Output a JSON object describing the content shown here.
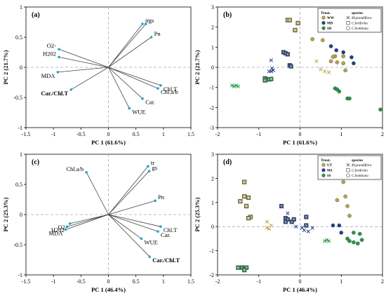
{
  "colors": {
    "ww": "#b5a648",
    "md": "#1f3f8c",
    "sd": "#1f9a44",
    "vec": "#2aa3c9"
  },
  "chart_data": [
    {
      "id": "a",
      "panel_label": "(a)",
      "type": "biplot",
      "xlabel": "PC 1 (61.6%)",
      "ylabel": "PC 2 (21.7%)",
      "xlim": [
        -1.5,
        1.5
      ],
      "ylim": [
        -1.0,
        1.0
      ],
      "xticks": [
        "-1.5",
        "-1",
        "-0.5",
        "0",
        "0.5",
        "1",
        "1.5"
      ],
      "yticks": [
        "-1",
        "-0.5",
        "0",
        "0.5",
        "1"
      ],
      "vectors": [
        {
          "label": "tr",
          "x": 0.62,
          "y": 0.72,
          "bold": false
        },
        {
          "label": "gs",
          "x": 0.68,
          "y": 0.72,
          "bold": false
        },
        {
          "label": "Pn",
          "x": 0.78,
          "y": 0.5,
          "bold": false
        },
        {
          "label": "O2-",
          "x": -0.9,
          "y": 0.3,
          "bold": false
        },
        {
          "label": "H202",
          "x": -0.9,
          "y": 0.17,
          "bold": false
        },
        {
          "label": "MDA",
          "x": -0.92,
          "y": -0.08,
          "bold": false
        },
        {
          "label": "Car./Chl.T",
          "x": -0.68,
          "y": -0.37,
          "bold": true
        },
        {
          "label": "Chl.T",
          "x": 0.95,
          "y": -0.3,
          "bold": false
        },
        {
          "label": "Chl.a/b",
          "x": 0.9,
          "y": -0.35,
          "bold": false
        },
        {
          "label": "Car.",
          "x": 0.62,
          "y": -0.52,
          "bold": false
        },
        {
          "label": "WUE",
          "x": 0.38,
          "y": -0.68,
          "bold": false
        }
      ]
    },
    {
      "id": "b",
      "panel_label": "(b)",
      "type": "scatter",
      "xlabel": "PC 1 (61.6%)",
      "ylabel": "PC 2 (21.7%)",
      "xlim": [
        -2,
        2
      ],
      "ylim": [
        -3,
        3
      ],
      "xticks": [
        "-2",
        "-1",
        "0",
        "1",
        "2"
      ],
      "yticks": [
        "-3",
        "-2",
        "-1",
        "0",
        "1",
        "2",
        "3"
      ],
      "legend": {
        "title_treat": "Treat.",
        "title_species": "species",
        "treatments": [
          {
            "label": "WW",
            "key": "ww"
          },
          {
            "label": "MD",
            "key": "md"
          },
          {
            "label": "SD",
            "key": "sd"
          }
        ],
        "species": [
          {
            "label": "M.grandiflora",
            "marker": "x"
          },
          {
            "label": "C.fortfrolia",
            "marker": "square"
          },
          {
            "label": "C.bonttiana",
            "marker": "circle"
          }
        ]
      },
      "series": [
        {
          "treat": "ww",
          "marker": "square",
          "points": [
            [
              -0.3,
              2.35
            ],
            [
              -0.25,
              2.35
            ],
            [
              -0.05,
              2.2
            ],
            [
              -0.12,
              1.85
            ]
          ]
        },
        {
          "treat": "ww",
          "marker": "circle",
          "points": [
            [
              0.3,
              1.4
            ],
            [
              0.55,
              1.35
            ],
            [
              0.85,
              0.55
            ],
            [
              0.8,
              0.52
            ],
            [
              1.05,
              0.55
            ],
            [
              0.75,
              0.3
            ],
            [
              0.9,
              0.25
            ],
            [
              1.05,
              0.2
            ],
            [
              1.1,
              -0.15
            ]
          ]
        },
        {
          "treat": "ww",
          "marker": "x",
          "points": [
            [
              0.4,
              0.3
            ],
            [
              0.5,
              -0.1
            ],
            [
              0.6,
              -0.2
            ],
            [
              0.7,
              -0.25
            ]
          ]
        },
        {
          "treat": "md",
          "marker": "x",
          "points": [
            [
              -0.7,
              0.35
            ],
            [
              -0.75,
              -0.2
            ],
            [
              -0.7,
              -0.2
            ],
            [
              -0.65,
              -0.15
            ],
            [
              -0.68,
              -0.05
            ]
          ]
        },
        {
          "treat": "md",
          "marker": "square",
          "points": [
            [
              -0.4,
              0.75
            ],
            [
              -0.35,
              0.7
            ],
            [
              -0.3,
              0.65
            ],
            [
              -0.25,
              0.1
            ],
            [
              -0.22,
              0.05
            ]
          ]
        },
        {
          "treat": "md",
          "marker": "circle",
          "points": [
            [
              0.75,
              1.05
            ],
            [
              0.88,
              0.85
            ],
            [
              1.05,
              0.75
            ],
            [
              1.25,
              0.5
            ],
            [
              1.3,
              0.2
            ]
          ]
        },
        {
          "treat": "sd",
          "marker": "x",
          "points": [
            [
              -1.65,
              -0.9
            ],
            [
              -1.6,
              -0.95
            ],
            [
              -1.55,
              -0.9
            ],
            [
              -1.5,
              -0.95
            ]
          ]
        },
        {
          "treat": "sd",
          "marker": "square",
          "points": [
            [
              -0.85,
              -0.55
            ],
            [
              -0.8,
              -0.6
            ],
            [
              -0.75,
              -0.6
            ],
            [
              -0.7,
              -0.58
            ],
            [
              -0.85,
              -0.65
            ]
          ]
        },
        {
          "treat": "sd",
          "marker": "circle",
          "points": [
            [
              0.85,
              -1.05
            ],
            [
              0.9,
              -1.1
            ],
            [
              0.95,
              -1.2
            ],
            [
              1.15,
              -1.55
            ],
            [
              1.2,
              -1.55
            ],
            [
              1.95,
              -2.1
            ]
          ]
        }
      ]
    },
    {
      "id": "c",
      "panel_label": "(c)",
      "type": "biplot",
      "xlabel": "PC 1 (46.4%)",
      "ylabel": "PC 2 (25.3%)",
      "xlim": [
        -1.5,
        1.5
      ],
      "ylim": [
        -1.0,
        1.0
      ],
      "xticks": [
        "-1.5",
        "-1",
        "-0.5",
        "0",
        "0.5",
        "1",
        "1.5"
      ],
      "yticks": [
        "-1",
        "-0.5",
        "0",
        "0.5",
        "1"
      ],
      "vectors": [
        {
          "label": "Chl.a/b",
          "x": -0.4,
          "y": 0.7,
          "bold": false
        },
        {
          "label": "tr",
          "x": 0.72,
          "y": 0.8,
          "bold": false
        },
        {
          "label": "gs",
          "x": 0.74,
          "y": 0.72,
          "bold": false
        },
        {
          "label": "Pn",
          "x": 0.85,
          "y": 0.23,
          "bold": false
        },
        {
          "label": "O2-",
          "x": -0.7,
          "y": -0.15,
          "bold": false
        },
        {
          "label": "H202",
          "x": -0.75,
          "y": -0.2,
          "bold": false
        },
        {
          "label": "MDA",
          "x": -0.78,
          "y": -0.25,
          "bold": false
        },
        {
          "label": "Chl.T",
          "x": 0.95,
          "y": -0.2,
          "bold": false
        },
        {
          "label": "Car.",
          "x": 0.9,
          "y": -0.28,
          "bold": false
        },
        {
          "label": "WUE",
          "x": 0.6,
          "y": -0.4,
          "bold": false
        },
        {
          "label": "Car./Chl.T",
          "x": 0.75,
          "y": -0.7,
          "bold": true
        }
      ]
    },
    {
      "id": "d",
      "panel_label": "(d)",
      "type": "scatter",
      "xlabel": "PC 1 (46.4%)",
      "ylabel": "PC 2 (25.3%)",
      "xlim": [
        -2,
        2
      ],
      "ylim": [
        -2,
        3
      ],
      "xticks": [
        "-2",
        "-1",
        "0",
        "1",
        "2"
      ],
      "yticks": [
        "-2",
        "-1",
        "0",
        "1",
        "2",
        "3"
      ],
      "legend": {
        "title_treat": "Treat.",
        "title_species": "species",
        "treatments": [
          {
            "label": "UT",
            "key": "ww"
          },
          {
            "label": "MS",
            "key": "md"
          },
          {
            "label": "SS",
            "key": "sd"
          }
        ],
        "species": [
          {
            "label": "M.grandiflora",
            "marker": "x"
          },
          {
            "label": "C.fortfrolia",
            "marker": "square"
          },
          {
            "label": "C.bonttiana",
            "marker": "circle"
          }
        ]
      },
      "series": [
        {
          "treat": "ww",
          "marker": "square",
          "points": [
            [
              -1.35,
              1.85
            ],
            [
              -1.35,
              1.25
            ],
            [
              -1.25,
              1.2
            ],
            [
              -1.45,
              1.05
            ],
            [
              -1.3,
              0.85
            ],
            [
              -1.2,
              0.4
            ],
            [
              -1.25,
              0.35
            ]
          ]
        },
        {
          "treat": "ww",
          "marker": "circle",
          "points": [
            [
              0.88,
              2.1
            ],
            [
              0.9,
              2.05
            ],
            [
              1.2,
              2.1
            ],
            [
              1.05,
              1.85
            ],
            [
              1.1,
              1.25
            ],
            [
              0.9,
              1.1
            ],
            [
              1.15,
              0.85
            ],
            [
              1.2,
              0.45
            ]
          ]
        },
        {
          "treat": "ww",
          "marker": "x",
          "points": [
            [
              -0.8,
              0.2
            ],
            [
              -0.7,
              0.05
            ],
            [
              -0.8,
              -0.05
            ],
            [
              -0.75,
              -0.1
            ]
          ]
        },
        {
          "treat": "md",
          "marker": "x",
          "points": [
            [
              -0.3,
              0.55
            ],
            [
              -0.1,
              0.0
            ],
            [
              0.05,
              -0.05
            ],
            [
              0.1,
              -0.15
            ],
            [
              0.2,
              -0.2
            ],
            [
              0.3,
              -0.05
            ]
          ]
        },
        {
          "treat": "md",
          "marker": "square",
          "points": [
            [
              -0.45,
              0.85
            ],
            [
              -0.35,
              0.35
            ],
            [
              -0.3,
              0.3
            ],
            [
              -0.35,
              0.2
            ],
            [
              -0.2,
              0.2
            ],
            [
              -0.15,
              0.3
            ],
            [
              0.15,
              0.4
            ],
            [
              0.15,
              0.05
            ]
          ]
        },
        {
          "treat": "md",
          "marker": "circle",
          "points": [
            [
              0.8,
              0.05
            ],
            [
              0.95,
              0.05
            ],
            [
              1.0,
              -0.25
            ]
          ]
        },
        {
          "treat": "sd",
          "marker": "x",
          "points": [
            [
              0.6,
              -0.6
            ],
            [
              0.65,
              -0.55
            ],
            [
              0.7,
              -0.6
            ]
          ]
        },
        {
          "treat": "sd",
          "marker": "square",
          "points": [
            [
              -1.5,
              -1.7
            ],
            [
              -1.4,
              -1.7
            ],
            [
              -1.35,
              -1.75
            ],
            [
              -1.3,
              -1.7
            ],
            [
              -1.35,
              -1.8
            ]
          ]
        },
        {
          "treat": "sd",
          "marker": "circle",
          "points": [
            [
              1.3,
              -0.25
            ],
            [
              1.45,
              -0.3
            ],
            [
              1.15,
              -0.5
            ],
            [
              1.2,
              -0.6
            ],
            [
              1.3,
              -0.65
            ],
            [
              1.4,
              -0.7
            ],
            [
              1.5,
              -0.55
            ]
          ]
        }
      ]
    }
  ]
}
